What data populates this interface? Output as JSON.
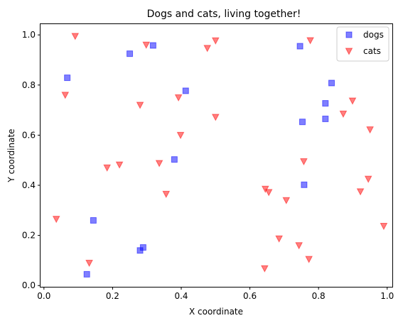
{
  "chart_data": {
    "type": "scatter",
    "title": "Dogs and cats, living together!",
    "xlabel": "X coordinate",
    "ylabel": "Y coordinate",
    "xlim": [
      -0.01,
      1.015
    ],
    "ylim": [
      -0.005,
      1.043
    ],
    "xticks": [
      0.0,
      0.2,
      0.4,
      0.6,
      0.8,
      1.0
    ],
    "xtick_labels": [
      "0.0",
      "0.2",
      "0.4",
      "0.6",
      "0.8",
      "1.0"
    ],
    "yticks": [
      0.0,
      0.2,
      0.4,
      0.6,
      0.8,
      1.0
    ],
    "ytick_labels": [
      "0.0",
      "0.2",
      "0.4",
      "0.6",
      "0.8",
      "1.0"
    ],
    "grid": false,
    "legend_position": "top-right",
    "series": [
      {
        "name": "dogs",
        "marker": "square",
        "color": "#0000ff",
        "x": [
          0.068,
          0.144,
          0.125,
          0.25,
          0.318,
          0.28,
          0.289,
          0.38,
          0.413,
          0.746,
          0.753,
          0.758,
          0.82,
          0.82,
          0.838
        ],
        "y": [
          0.829,
          0.26,
          0.045,
          0.925,
          0.958,
          0.14,
          0.152,
          0.503,
          0.777,
          0.955,
          0.653,
          0.402,
          0.727,
          0.665,
          0.808
        ]
      },
      {
        "name": "cats",
        "marker": "triangle-down",
        "color": "#ff0000",
        "x": [
          0.091,
          0.298,
          0.476,
          0.5,
          0.776,
          0.062,
          0.28,
          0.392,
          0.5,
          0.398,
          0.184,
          0.22,
          0.336,
          0.356,
          0.036,
          0.132,
          0.645,
          0.655,
          0.706,
          0.685,
          0.743,
          0.772,
          0.643,
          0.757,
          0.872,
          0.899,
          0.95,
          0.945,
          0.922,
          0.99
        ],
        "y": [
          0.995,
          0.96,
          0.947,
          0.977,
          0.978,
          0.76,
          0.72,
          0.75,
          0.672,
          0.6,
          0.47,
          0.482,
          0.488,
          0.365,
          0.265,
          0.09,
          0.385,
          0.372,
          0.34,
          0.187,
          0.16,
          0.105,
          0.068,
          0.495,
          0.685,
          0.737,
          0.622,
          0.425,
          0.375,
          0.237
        ]
      }
    ]
  }
}
